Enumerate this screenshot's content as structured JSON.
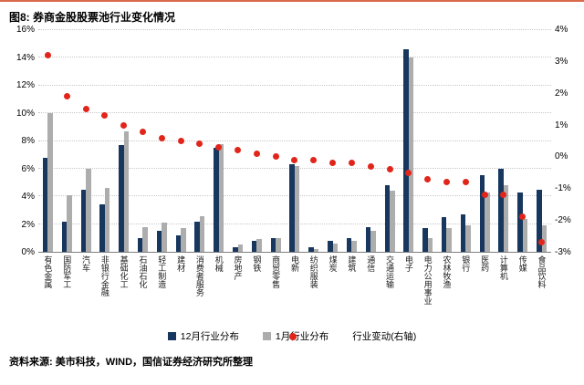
{
  "header": {
    "title": "图8: 券商金股股票池行业变化情况"
  },
  "footer": {
    "source": "资料来源: 美市科技，WIND，国信证券经济研究所整理"
  },
  "colors": {
    "dec_bar": "#17375E",
    "jan_bar": "#ADADAD",
    "dot": "#E1251B",
    "grid": "#C8C8C8",
    "accent": "#D96A4A"
  },
  "chart_data": {
    "type": "bar",
    "title": "券商金股股票池行业变化情况",
    "xlabel": "",
    "ylabel": "",
    "legend_position": "bottom",
    "grid": "horizontal-dotted",
    "categories": [
      "有色金属",
      "国防军工",
      "汽车",
      "非银行金融",
      "基础化工",
      "石油石化",
      "轻工制造",
      "建材",
      "消费者服务",
      "机械",
      "房地产",
      "钢铁",
      "商贸零售",
      "电新",
      "纺织服装",
      "煤炭",
      "建筑",
      "通信",
      "交通运输",
      "电子",
      "电力公用事业",
      "农林牧渔",
      "银行",
      "医药",
      "计算机",
      "传媒",
      "食品饮料"
    ],
    "series": [
      {
        "name": "12月行业分布",
        "type": "bar",
        "axis": "left",
        "values": [
          6.8,
          2.2,
          4.5,
          3.4,
          7.7,
          1.0,
          1.5,
          1.2,
          2.2,
          7.5,
          0.3,
          0.8,
          1.0,
          6.3,
          0.3,
          0.8,
          1.0,
          1.8,
          4.8,
          14.6,
          1.7,
          2.5,
          2.7,
          5.5,
          6.0,
          4.3,
          4.5
        ]
      },
      {
        "name": "1月行业分布",
        "type": "bar",
        "axis": "left",
        "values": [
          10.0,
          4.1,
          6.0,
          4.6,
          8.7,
          1.8,
          2.1,
          1.7,
          2.6,
          7.8,
          0.5,
          0.9,
          1.0,
          6.2,
          0.2,
          0.6,
          0.8,
          1.5,
          4.4,
          14.0,
          1.0,
          1.7,
          1.9,
          4.3,
          4.8,
          2.4,
          1.9
        ]
      },
      {
        "name": "行业变动(右轴)",
        "type": "scatter",
        "axis": "right",
        "values": [
          3.2,
          1.9,
          1.5,
          1.3,
          1.0,
          0.8,
          0.6,
          0.5,
          0.4,
          0.3,
          0.2,
          0.1,
          0.0,
          -0.1,
          -0.1,
          -0.2,
          -0.2,
          -0.3,
          -0.4,
          -0.5,
          -0.7,
          -0.8,
          -0.8,
          -1.2,
          -1.2,
          -1.9,
          -2.7
        ]
      }
    ],
    "left_axis": {
      "min": 0,
      "max": 16,
      "ticks": [
        "0%",
        "2%",
        "4%",
        "6%",
        "8%",
        "10%",
        "12%",
        "14%",
        "16%"
      ]
    },
    "right_axis": {
      "min": -3,
      "max": 4,
      "ticks": [
        "-3%",
        "-2%",
        "-1%",
        "0%",
        "1%",
        "2%",
        "3%",
        "4%"
      ]
    }
  }
}
